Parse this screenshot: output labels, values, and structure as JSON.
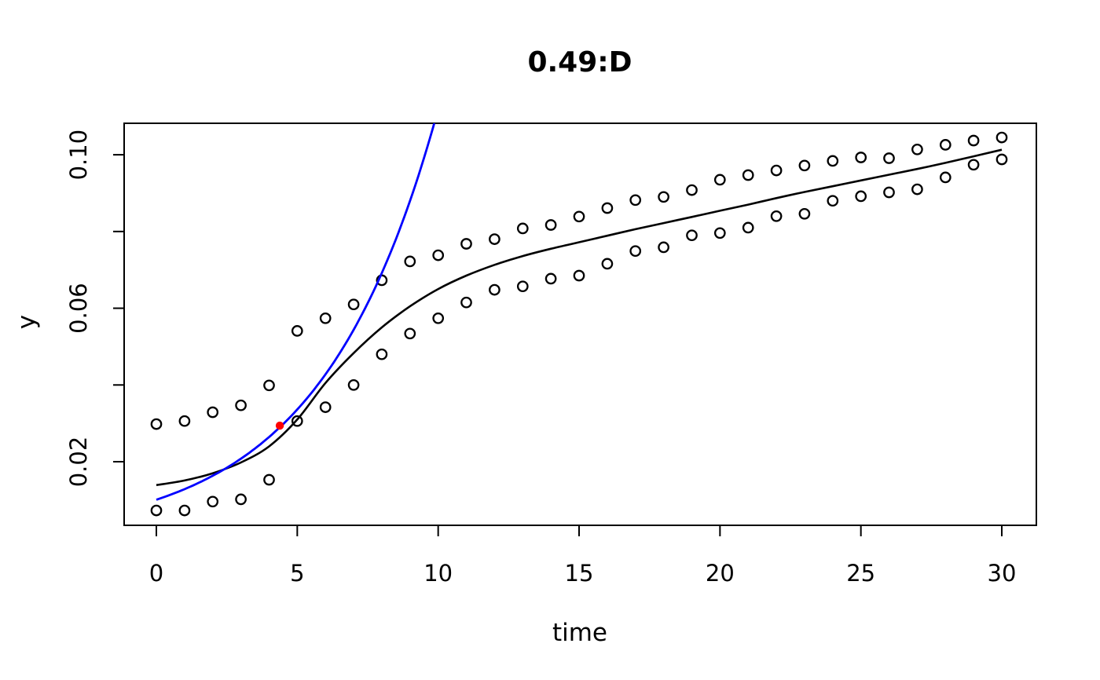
{
  "figure": {
    "background": "#ffffff",
    "foreground": "#000000"
  },
  "chart_data": {
    "type": "scatter",
    "title": "0.49:D",
    "xlabel": "time",
    "ylabel": "y",
    "grid": false,
    "legend": null,
    "xlim": [
      -1.2,
      31.2
    ],
    "ylim": [
      0.0034,
      0.1082
    ],
    "x_ticks": [
      0,
      5,
      10,
      15,
      20,
      25,
      30
    ],
    "x_tick_labels": [
      "0",
      "5",
      "10",
      "15",
      "20",
      "25",
      "30"
    ],
    "y_ticks": [
      0.02,
      0.04,
      0.06,
      0.08,
      0.1
    ],
    "y_tick_labels": [
      "0.02",
      "",
      "0.06",
      "",
      "0.10"
    ],
    "x": [
      0,
      1,
      2,
      3,
      4,
      5,
      6,
      7,
      8,
      9,
      10,
      11,
      12,
      13,
      14,
      15,
      16,
      17,
      18,
      19,
      20,
      21,
      22,
      23,
      24,
      25,
      26,
      27,
      28,
      29,
      30
    ],
    "series": [
      {
        "name": "observed-upper",
        "marker": "circle-open",
        "color": "#000000",
        "values": [
          0.0298,
          0.0306,
          0.0329,
          0.0347,
          0.0399,
          0.0541,
          0.0574,
          0.061,
          0.0673,
          0.0722,
          0.0738,
          0.0768,
          0.078,
          0.0808,
          0.0817,
          0.0839,
          0.0861,
          0.0882,
          0.089,
          0.0908,
          0.0935,
          0.0947,
          0.0959,
          0.0972,
          0.0984,
          0.0993,
          0.0991,
          0.1014,
          0.1026,
          0.1037,
          0.1045
        ]
      },
      {
        "name": "observed-lower",
        "marker": "circle-open",
        "color": "#000000",
        "values": [
          0.0073,
          0.0073,
          0.0096,
          0.0102,
          0.0153,
          0.0306,
          0.0342,
          0.04,
          0.048,
          0.0534,
          0.0574,
          0.0615,
          0.0648,
          0.0657,
          0.0677,
          0.0685,
          0.0716,
          0.0749,
          0.0759,
          0.079,
          0.0796,
          0.081,
          0.084,
          0.0846,
          0.088,
          0.0892,
          0.0902,
          0.091,
          0.0941,
          0.0974,
          0.0988
        ]
      },
      {
        "name": "model-curve",
        "marker": "line",
        "color": "#000000",
        "values": [
          0.0139,
          0.0151,
          0.017,
          0.0198,
          0.024,
          0.031,
          0.0405,
          0.0483,
          0.055,
          0.0605,
          0.065,
          0.0685,
          0.0713,
          0.0736,
          0.0755,
          0.0772,
          0.0789,
          0.0806,
          0.0822,
          0.0838,
          0.0854,
          0.087,
          0.0887,
          0.0903,
          0.0918,
          0.0933,
          0.0948,
          0.0963,
          0.0979,
          0.0996,
          0.1013
        ]
      }
    ],
    "exponential_curve": {
      "name": "exponential-growth-curve",
      "color": "#0000FF",
      "y0": 0.0101,
      "rate": 0.2405,
      "t_min": 0,
      "t_max": 10
    },
    "highlight_point": {
      "name": "tangent-point",
      "color": "#FF0000",
      "x": 4.38,
      "y": 0.0294
    }
  }
}
